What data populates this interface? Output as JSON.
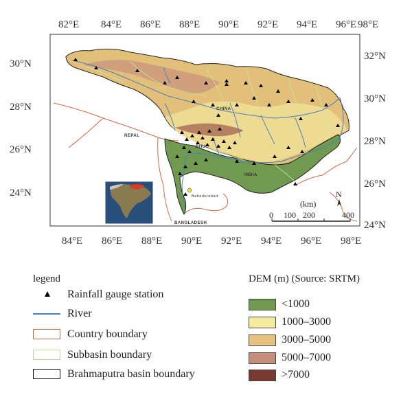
{
  "map": {
    "lon_ticks": [
      "82°E",
      "84°E",
      "86°E",
      "88°E",
      "90°E",
      "92°E",
      "94°E",
      "96°E",
      "98°E"
    ],
    "lat_ticks_left": [
      "30°N",
      "28°N",
      "26°N",
      "24°N"
    ],
    "lat_ticks_right": [
      "32°N",
      "30°N",
      "28°N",
      "26°N",
      "24°N"
    ],
    "place_labels": {
      "nepal": "NEPAL",
      "china": "CHINA",
      "india": "INDIA",
      "bhutan": "BHU",
      "bangladesh": "BANGLADESH",
      "station": "Bahadurabad"
    },
    "north_arrow": "N",
    "scale_unit": "(km)",
    "scale_values": [
      "0",
      "100",
      "200",
      "400"
    ],
    "colors": {
      "lowland": "#6f9a4f",
      "mid": "#e8d98a",
      "high": "#e0bf78",
      "veryhigh": "#c09080",
      "peak": "#7a3a30",
      "river": "#4a7fbf",
      "country": "#d9663d",
      "subbasin": "#c9e4a8"
    }
  },
  "legend": {
    "title": "legend",
    "items": [
      {
        "label": "Rainfall gauge station",
        "symbol": "triangle"
      },
      {
        "label": "River",
        "symbol": "line",
        "color": "#4a7fbf"
      },
      {
        "label": "Country boundary",
        "symbol": "box",
        "color": "#d9663d"
      },
      {
        "label": "Subbasin boundary",
        "symbol": "box",
        "color": "#b9dc96"
      },
      {
        "label": "Brahmaputra basin boundary",
        "symbol": "box",
        "color": "#000000"
      }
    ]
  },
  "dem_legend": {
    "title": "DEM (m) (Source: SRTM)",
    "classes": [
      {
        "label": "<1000",
        "color": "#6f9a4f"
      },
      {
        "label": "1000–3000",
        "color": "#f2eba0"
      },
      {
        "label": "3000–5000",
        "color": "#e6c27e"
      },
      {
        "label": "5000–7000",
        "color": "#c48e7c"
      },
      {
        "label": ">7000",
        "color": "#7a3a30"
      }
    ]
  }
}
